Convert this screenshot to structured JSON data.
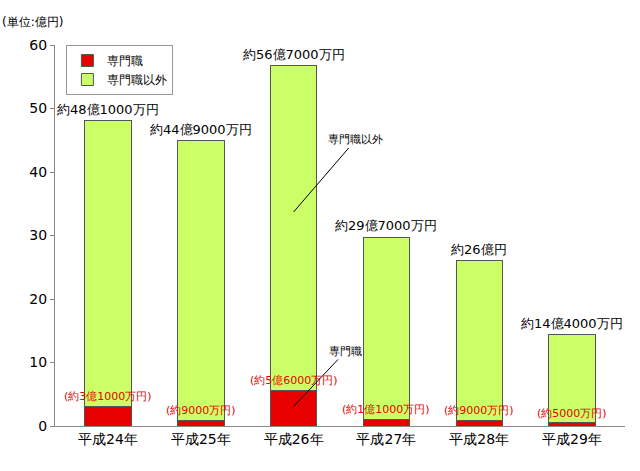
{
  "chart_data": {
    "type": "bar",
    "stacked": true,
    "ylabel": "(単位:億円)",
    "categories": [
      "平成24年",
      "平成25年",
      "平成26年",
      "平成27年",
      "平成28年",
      "平成29年"
    ],
    "series": [
      {
        "name": "専門職",
        "color": "#e60000",
        "values": [
          3.1,
          0.9,
          5.6,
          1.1,
          0.9,
          0.5
        ],
        "value_labels": [
          "(約3億1000万円)",
          "(約9000万円)",
          "(約5億6000万円)",
          "(約1億1000万円)",
          "(約9000万円)",
          "(約5000万円)"
        ]
      },
      {
        "name": "専門職以外",
        "color": "#ccff66",
        "values": [
          45.0,
          44.0,
          51.1,
          28.6,
          25.1,
          13.9
        ]
      }
    ],
    "total_labels": [
      "約48億1000万円",
      "約44億9000万円",
      "約56億7000万円",
      "約29億7000万円",
      "約26億円",
      "約14億4000万円"
    ],
    "annotations": [
      {
        "text": "専門職以外",
        "category": "平成26年",
        "series": "専門職以外"
      },
      {
        "text": "専門職",
        "category": "平成26年",
        "series": "専門職"
      }
    ],
    "ylim": [
      0,
      60
    ],
    "yticks": [
      0,
      10,
      20,
      30,
      40,
      50,
      60
    ],
    "grid": false,
    "legend": "upper left",
    "data_labels": true
  }
}
